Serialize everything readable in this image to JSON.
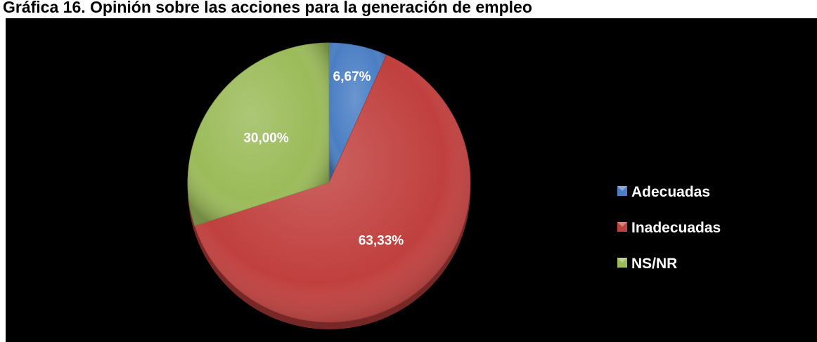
{
  "title": "Gráfica 16. Opinión sobre las acciones para la generación de empleo",
  "chart_data": {
    "type": "pie",
    "categories": [
      "Adecuadas",
      "Inadecuadas",
      "NS/NR"
    ],
    "values": [
      6.67,
      63.33,
      30.0
    ],
    "data_labels": [
      "6,67%",
      "63,33%",
      "30,00%"
    ],
    "colors": [
      "#4a7ec4",
      "#c0403e",
      "#9bbb59"
    ],
    "legend_position": "right",
    "background": "#000000"
  }
}
